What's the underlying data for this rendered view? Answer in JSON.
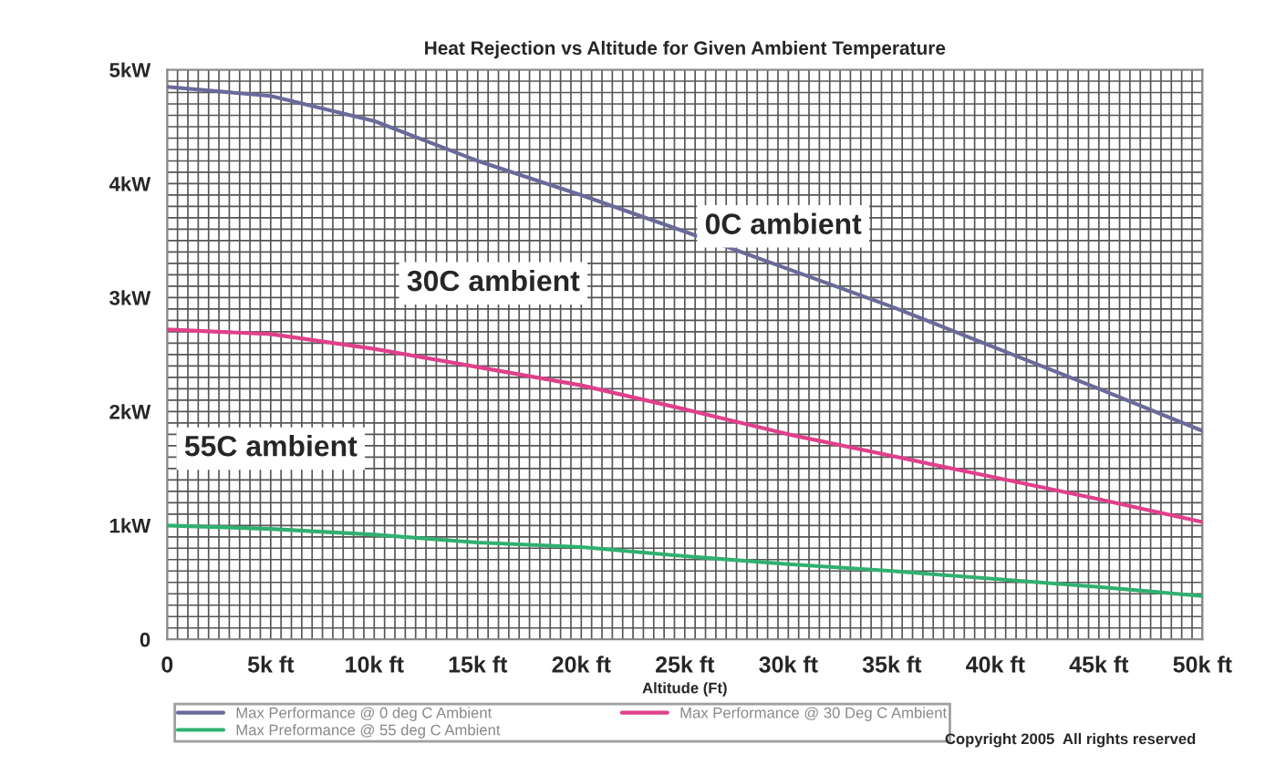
{
  "chart_data": {
    "type": "line",
    "title": "Heat Rejection vs Altitude for Given Ambient Temperature",
    "xlabel": "Altitude (Ft)",
    "x": [
      0,
      5000,
      10000,
      15000,
      20000,
      25000,
      30000,
      35000,
      40000,
      45000,
      50000
    ],
    "series": [
      {
        "name": "Max Performance @ 0 deg C Ambient",
        "color": "#6a6a9a",
        "values": [
          4.85,
          4.77,
          4.55,
          4.2,
          3.9,
          3.58,
          3.25,
          2.92,
          2.56,
          2.2,
          1.83
        ]
      },
      {
        "name": "Max Performance @ 30 Deg C Ambient",
        "color": "#e0408a",
        "values": [
          2.72,
          2.68,
          2.55,
          2.39,
          2.23,
          2.02,
          1.8,
          1.61,
          1.42,
          1.23,
          1.03
        ]
      },
      {
        "name": "Max Preformance @ 55 deg C Ambient",
        "color": "#30b070",
        "values": [
          1.0,
          0.97,
          0.92,
          0.85,
          0.81,
          0.73,
          0.66,
          0.6,
          0.53,
          0.46,
          0.38
        ]
      }
    ],
    "xlim": [
      0,
      50000
    ],
    "ylim": [
      0,
      5
    ],
    "xticks": [
      {
        "value": 0,
        "label": "0"
      },
      {
        "value": 5000,
        "label": "5k ft"
      },
      {
        "value": 10000,
        "label": "10k ft"
      },
      {
        "value": 15000,
        "label": "15k ft"
      },
      {
        "value": 20000,
        "label": "20k ft"
      },
      {
        "value": 25000,
        "label": "25k ft"
      },
      {
        "value": 30000,
        "label": "30k ft"
      },
      {
        "value": 35000,
        "label": "35k ft"
      },
      {
        "value": 40000,
        "label": "40k ft"
      },
      {
        "value": 45000,
        "label": "45k ft"
      },
      {
        "value": 50000,
        "label": "50k ft"
      }
    ],
    "yticks": [
      {
        "value": 0,
        "label": "0"
      },
      {
        "value": 1,
        "label": "1kW"
      },
      {
        "value": 2,
        "label": "2kW"
      },
      {
        "value": 3,
        "label": "3kW"
      },
      {
        "value": 4,
        "label": "4kW"
      },
      {
        "value": 5,
        "label": "5kW"
      }
    ],
    "annotations": [
      "0C ambient",
      "30C ambient",
      "55C ambient",
      "Copyright 2005  All rights reserved"
    ],
    "grid": true,
    "legend": "bottom",
    "marker": "none",
    "line_style": "solid"
  }
}
